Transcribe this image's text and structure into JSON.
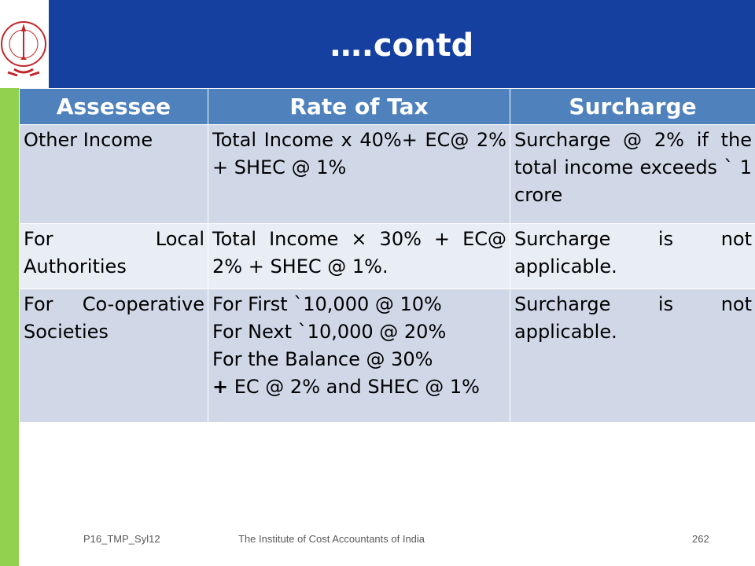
{
  "slide": {
    "title": "….contd",
    "logo": {
      "name": "seal-logo",
      "text": "THE INSTITUTE OF COST ACCOUNTANTS OF INDIA"
    },
    "colors": {
      "header": "#1540a0",
      "sidebar": "#92d050",
      "table_header": "#4f81bd",
      "row_odd": "#d0d8e8",
      "row_even": "#e9edf4"
    }
  },
  "table": {
    "headers": [
      "Assessee",
      "Rate of Tax",
      "Surcharge"
    ],
    "rows": [
      {
        "assessee": "Other Income",
        "rate": "Total Income x 40%+ EC@ 2% + SHEC @ 1%",
        "surcharge": "Surcharge @ 2% if the total income exceeds ` 1 crore"
      },
      {
        "assessee": "For Local Authorities",
        "rate": "Total Income × 30% + EC@ 2% + SHEC @ 1%.",
        "surcharge": "Surcharge is not applicable."
      },
      {
        "assessee": "For Co-operative Societies",
        "rate_lines": [
          "For First `10,000 @ 10%",
          "For Next `10,000 @ 20%",
          "For the Balance @ 30%"
        ],
        "rate_plus": "+",
        "rate_last": " EC @ 2% and SHEC @ 1%",
        "surcharge": "Surcharge is not applicable."
      }
    ]
  },
  "footer": {
    "code": "P16_TMP_Syl12",
    "org": "The Institute of Cost Accountants of India",
    "page": "262"
  }
}
